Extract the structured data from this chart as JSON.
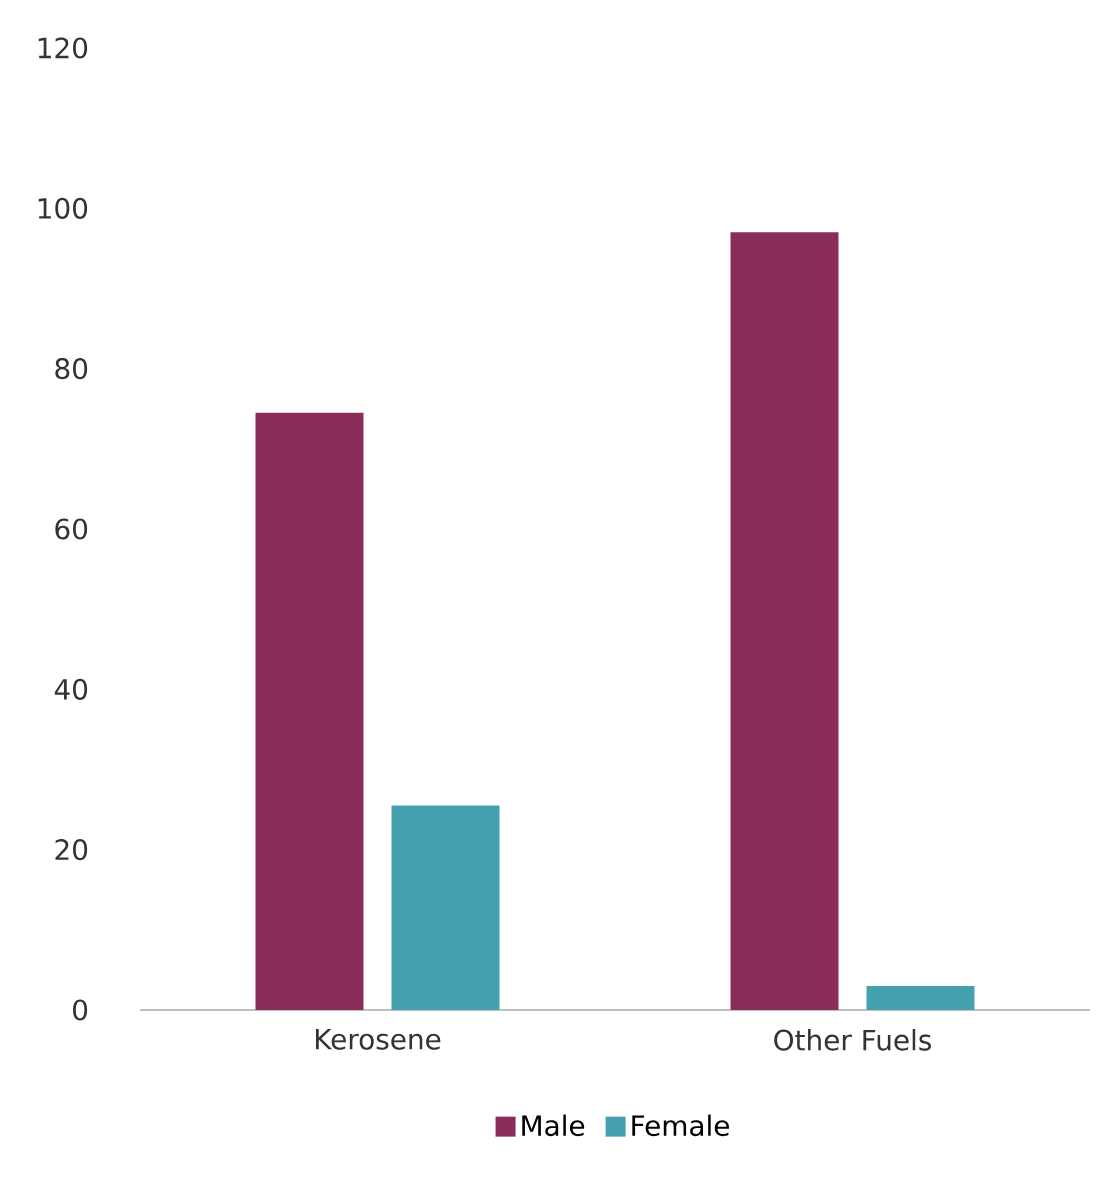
{
  "chart_data": {
    "type": "bar",
    "categories": [
      "Kerosene",
      "Other Fuels"
    ],
    "series": [
      {
        "name": "Male",
        "color": "#8b2d5b",
        "values": [
          74.5,
          97
        ]
      },
      {
        "name": "Female",
        "color": "#45a0b0",
        "values": [
          25.5,
          3
        ]
      }
    ],
    "ylim": [
      0,
      120
    ],
    "yticks": [
      0,
      20,
      40,
      60,
      80,
      100,
      120
    ],
    "grid": false,
    "legend": "bottom"
  }
}
